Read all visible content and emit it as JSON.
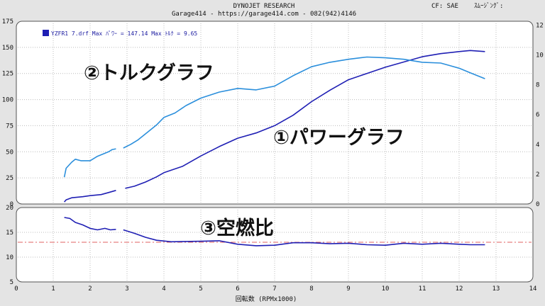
{
  "header": {
    "title": "DYNOJET  RESEARCH",
    "subtitle": "Garage414 - https://garage414.com - 082(942)4146",
    "correction": "CF: SAE",
    "smoothing": "ｽﾑｰｼﾞﾝｸﾞ:"
  },
  "legend": {
    "entry": "YZFR1 7.drf  Max ﾊﾟﾜｰ = 147.14   Max ﾄﾙｸ = 9.65"
  },
  "annotations": {
    "torque": "②トルクグラフ",
    "power": "①パワーグラフ",
    "afr": "③空燃比"
  },
  "colors": {
    "power": "#1f1fb4",
    "torque": "#2b8fdc",
    "afr": "#1f1fb4",
    "reference": "#e06060",
    "background": "#e4e4e4",
    "plot_bg": "#ffffff"
  },
  "chart_data": [
    {
      "type": "line",
      "xlabel": "回転数 (RPMx1000)",
      "xlim": [
        0,
        14
      ],
      "x_ticks": [
        "0",
        "1",
        "2",
        "3",
        "4",
        "5",
        "6",
        "7",
        "8",
        "9",
        "10",
        "11",
        "12",
        "13",
        "14"
      ],
      "ylim": [
        0,
        175
      ],
      "y_ticks": [
        "0",
        "25",
        "50",
        "75",
        "100",
        "125",
        "150",
        "175"
      ],
      "y2lim": [
        0,
        12.25
      ],
      "y2_ticks": [
        "0",
        "2",
        "4",
        "6",
        "8",
        "10",
        "12"
      ],
      "grid": true,
      "series": [
        {
          "name": "YZFR1 7.drf",
          "role": "power",
          "axis": "left",
          "segments": [
            [
              [
                1.3,
                2
              ],
              [
                1.35,
                4
              ],
              [
                1.5,
                6
              ],
              [
                1.8,
                7
              ],
              [
                2.0,
                8
              ],
              [
                2.3,
                9
              ],
              [
                2.5,
                11
              ],
              [
                2.7,
                13
              ]
            ],
            [
              [
                2.95,
                15
              ],
              [
                3.2,
                17
              ],
              [
                3.5,
                21
              ],
              [
                3.8,
                26
              ],
              [
                4.0,
                30
              ],
              [
                4.5,
                36
              ],
              [
                5.0,
                46
              ],
              [
                5.5,
                55
              ],
              [
                6.0,
                63
              ],
              [
                6.5,
                68
              ],
              [
                7.0,
                75
              ],
              [
                7.5,
                85
              ],
              [
                8.0,
                98
              ],
              [
                8.5,
                109
              ],
              [
                9.0,
                119
              ],
              [
                9.5,
                125
              ],
              [
                10.0,
                131
              ],
              [
                10.5,
                136
              ],
              [
                11.0,
                141
              ],
              [
                11.5,
                144
              ],
              [
                12.0,
                146
              ],
              [
                12.3,
                147
              ],
              [
                12.7,
                146
              ]
            ]
          ]
        },
        {
          "name": "YZFR1 7.drf",
          "role": "torque",
          "axis": "right",
          "segments": [
            [
              [
                1.3,
                1.8
              ],
              [
                1.35,
                2.4
              ],
              [
                1.5,
                2.8
              ],
              [
                1.6,
                3.0
              ],
              [
                1.75,
                2.9
              ],
              [
                2.0,
                2.9
              ],
              [
                2.2,
                3.2
              ],
              [
                2.4,
                3.4
              ],
              [
                2.5,
                3.5
              ],
              [
                2.6,
                3.65
              ],
              [
                2.7,
                3.7
              ]
            ],
            [
              [
                2.9,
                3.75
              ],
              [
                3.1,
                4.0
              ],
              [
                3.3,
                4.3
              ],
              [
                3.5,
                4.7
              ],
              [
                3.8,
                5.3
              ],
              [
                4.0,
                5.8
              ],
              [
                4.3,
                6.1
              ],
              [
                4.6,
                6.6
              ],
              [
                5.0,
                7.1
              ],
              [
                5.5,
                7.5
              ],
              [
                6.0,
                7.75
              ],
              [
                6.5,
                7.65
              ],
              [
                7.0,
                7.9
              ],
              [
                7.5,
                8.6
              ],
              [
                8.0,
                9.2
              ],
              [
                8.5,
                9.5
              ],
              [
                9.0,
                9.7
              ],
              [
                9.5,
                9.85
              ],
              [
                10.0,
                9.8
              ],
              [
                10.5,
                9.7
              ],
              [
                11.0,
                9.5
              ],
              [
                11.5,
                9.45
              ],
              [
                12.0,
                9.1
              ],
              [
                12.3,
                8.8
              ],
              [
                12.7,
                8.4
              ]
            ]
          ]
        }
      ]
    },
    {
      "type": "line",
      "xlim": [
        0,
        14
      ],
      "x_ticks": [
        "0",
        "1",
        "2",
        "3",
        "4",
        "5",
        "6",
        "7",
        "8",
        "9",
        "10",
        "11",
        "12",
        "13",
        "14"
      ],
      "ylim": [
        5,
        20
      ],
      "y_ticks": [
        "5",
        "10",
        "15",
        "20"
      ],
      "grid": true,
      "reference_line": 13.0,
      "series": [
        {
          "role": "afr",
          "segments": [
            [
              [
                1.3,
                18.0
              ],
              [
                1.45,
                17.8
              ],
              [
                1.6,
                17.0
              ],
              [
                1.8,
                16.5
              ],
              [
                2.0,
                15.8
              ],
              [
                2.2,
                15.5
              ],
              [
                2.4,
                15.8
              ],
              [
                2.55,
                15.5
              ],
              [
                2.7,
                15.6
              ]
            ],
            [
              [
                2.9,
                15.5
              ],
              [
                3.2,
                14.8
              ],
              [
                3.5,
                14.0
              ],
              [
                3.8,
                13.4
              ],
              [
                4.2,
                13.1
              ],
              [
                5.0,
                13.2
              ],
              [
                5.5,
                13.3
              ],
              [
                6.0,
                12.6
              ],
              [
                6.5,
                12.3
              ],
              [
                7.0,
                12.4
              ],
              [
                7.5,
                12.9
              ],
              [
                8.0,
                12.9
              ],
              [
                8.5,
                12.7
              ],
              [
                9.0,
                12.8
              ],
              [
                9.5,
                12.5
              ],
              [
                10.0,
                12.4
              ],
              [
                10.5,
                12.8
              ],
              [
                11.0,
                12.6
              ],
              [
                11.5,
                12.8
              ],
              [
                12.0,
                12.6
              ],
              [
                12.3,
                12.5
              ],
              [
                12.7,
                12.5
              ]
            ]
          ]
        }
      ]
    }
  ]
}
